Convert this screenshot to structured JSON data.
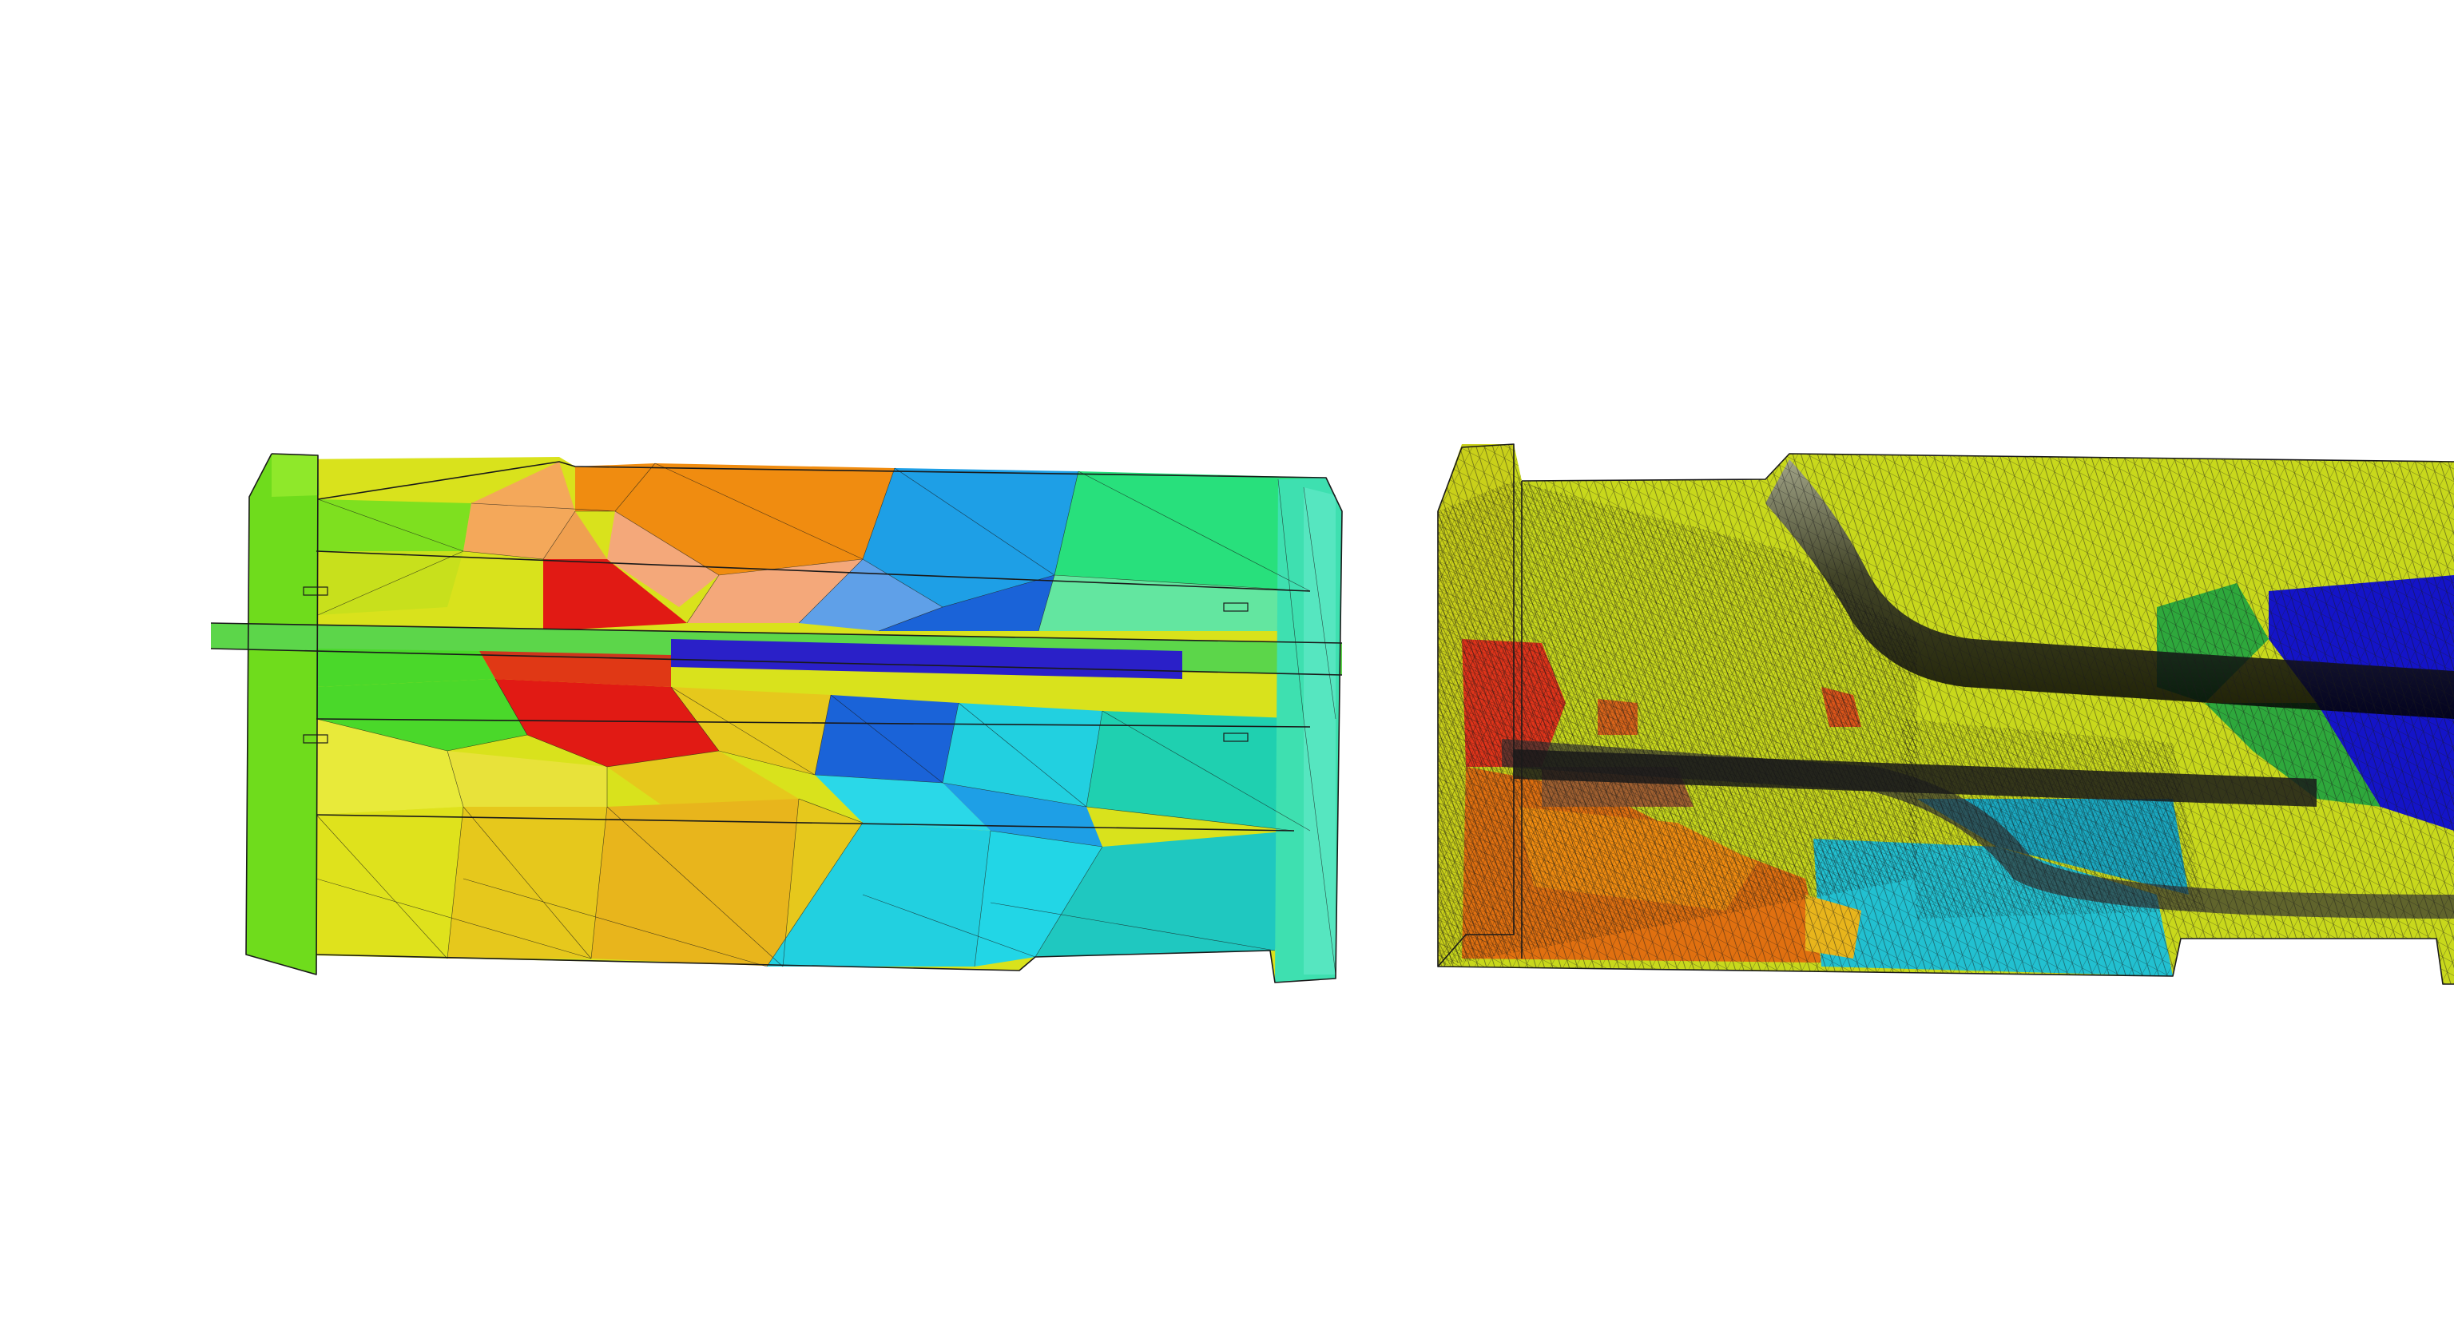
{
  "canvas": {
    "background": "#ffffff"
  },
  "meshes": [
    {
      "id": "coarse-mesh",
      "description_visible": false,
      "colormap": "jet",
      "partition_colors": [
        "#7ee01f",
        "#d8e01c",
        "#e6c81c",
        "#f08c10",
        "#e11a14",
        "#f4a87a",
        "#1a63d8",
        "#1e9fe6",
        "#22d0e0",
        "#1fd0b0",
        "#28e07c",
        "#2a20c8",
        "#4ad82a"
      ]
    },
    {
      "id": "fine-mesh",
      "description_visible": false,
      "colormap": "jet",
      "partition_colors": [
        "#c8d81c",
        "#b8d21a",
        "#e0341a",
        "#f08c10",
        "#e07010",
        "#22c0d0",
        "#1aa8c0",
        "#1414c8",
        "#2ea83c",
        "#3a3a3a"
      ]
    }
  ]
}
